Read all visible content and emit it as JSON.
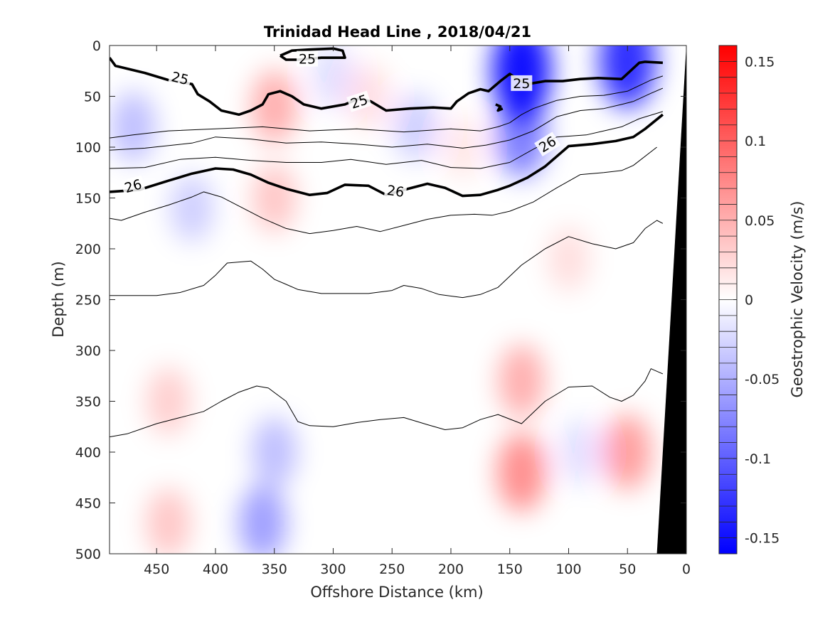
{
  "chart_data": {
    "type": "heatmap",
    "title": "Trinidad Head Line , 2018/04/21",
    "xlabel": "Offshore Distance (km)",
    "ylabel": "Depth (m)",
    "colorbar_label": "Geostrophic Velocity (m/s)",
    "xlim": [
      490,
      0
    ],
    "ylim": [
      500,
      0
    ],
    "x_ticks": [
      "450",
      "400",
      "350",
      "300",
      "250",
      "200",
      "150",
      "100",
      "50",
      "0"
    ],
    "y_ticks": [
      "0",
      "50",
      "100",
      "150",
      "200",
      "250",
      "300",
      "350",
      "400",
      "450",
      "500"
    ],
    "colorbar": {
      "range": [
        -0.16,
        0.16
      ],
      "ticks": [
        "0.15",
        "0.1",
        "0.05",
        "0",
        "-0.05",
        "-0.1",
        "-0.15"
      ],
      "negative_color": "#0000ff",
      "positive_color": "#ff0000",
      "zero_color": "#ffffff",
      "levels": 32
    },
    "velocity_cores": [
      {
        "x": 140,
        "depth": 25,
        "value": -0.15
      },
      {
        "x": 50,
        "depth": 15,
        "value": -0.13
      },
      {
        "x": 140,
        "depth": 90,
        "value": -0.08
      },
      {
        "x": 470,
        "depth": 80,
        "value": -0.04
      },
      {
        "x": 420,
        "depth": 160,
        "value": -0.03
      },
      {
        "x": 350,
        "depth": 400,
        "value": -0.04
      },
      {
        "x": 360,
        "depth": 470,
        "value": -0.06
      },
      {
        "x": 300,
        "depth": 30,
        "value": -0.02
      },
      {
        "x": 230,
        "depth": 80,
        "value": -0.03
      },
      {
        "x": 90,
        "depth": 400,
        "value": -0.02
      },
      {
        "x": 350,
        "depth": 60,
        "value": 0.05
      },
      {
        "x": 350,
        "depth": 150,
        "value": 0.035
      },
      {
        "x": 270,
        "depth": 50,
        "value": 0.02
      },
      {
        "x": 190,
        "depth": 100,
        "value": 0.015
      },
      {
        "x": 140,
        "depth": 420,
        "value": 0.07
      },
      {
        "x": 140,
        "depth": 330,
        "value": 0.05
      },
      {
        "x": 50,
        "depth": 400,
        "value": 0.06
      },
      {
        "x": 440,
        "depth": 350,
        "value": 0.03
      },
      {
        "x": 440,
        "depth": 470,
        "value": 0.035
      },
      {
        "x": 100,
        "depth": 210,
        "value": 0.02
      }
    ],
    "isopycnals": [
      {
        "label": "25",
        "bold": true,
        "points": [
          [
            490,
            12
          ],
          [
            485,
            20
          ],
          [
            460,
            27
          ],
          [
            440,
            34
          ],
          [
            420,
            38
          ],
          [
            415,
            48
          ],
          [
            405,
            55
          ],
          [
            395,
            64
          ],
          [
            380,
            68
          ],
          [
            370,
            64
          ],
          [
            360,
            58
          ],
          [
            355,
            48
          ],
          [
            345,
            45
          ],
          [
            335,
            50
          ],
          [
            325,
            58
          ],
          [
            310,
            62
          ],
          [
            290,
            58
          ],
          [
            278,
            52
          ],
          [
            268,
            55
          ],
          [
            255,
            64
          ],
          [
            235,
            62
          ],
          [
            215,
            61
          ],
          [
            200,
            62
          ],
          [
            195,
            55
          ],
          [
            185,
            47
          ],
          [
            175,
            43
          ],
          [
            168,
            45
          ],
          [
            158,
            35
          ],
          [
            150,
            28
          ],
          [
            145,
            32
          ],
          [
            135,
            38
          ],
          [
            120,
            35
          ],
          [
            105,
            35
          ],
          [
            90,
            33
          ],
          [
            75,
            32
          ],
          [
            55,
            33
          ],
          [
            40,
            17
          ],
          [
            35,
            16
          ],
          [
            20,
            17
          ]
        ]
      },
      {
        "label": "25",
        "bold": true,
        "points": [
          [
            345,
            10
          ],
          [
            335,
            5
          ],
          [
            320,
            4
          ],
          [
            300,
            3
          ],
          [
            292,
            5
          ],
          [
            290,
            12
          ],
          [
            310,
            12
          ],
          [
            330,
            14
          ],
          [
            340,
            14
          ],
          [
            345,
            10
          ]
        ]
      },
      {
        "label": "",
        "bold": true,
        "points": [
          [
            162,
            58
          ],
          [
            158,
            60
          ],
          [
            160,
            64
          ],
          [
            156,
            62
          ]
        ]
      },
      {
        "label": "",
        "bold": false,
        "points": [
          [
            490,
            91
          ],
          [
            470,
            88
          ],
          [
            440,
            84
          ],
          [
            400,
            82
          ],
          [
            360,
            80
          ],
          [
            320,
            84
          ],
          [
            280,
            82
          ],
          [
            240,
            85
          ],
          [
            200,
            82
          ],
          [
            175,
            84
          ],
          [
            160,
            80
          ],
          [
            150,
            76
          ],
          [
            140,
            68
          ],
          [
            130,
            62
          ],
          [
            110,
            54
          ],
          [
            90,
            50
          ],
          [
            70,
            49
          ],
          [
            50,
            45
          ],
          [
            30,
            34
          ],
          [
            20,
            30
          ]
        ]
      },
      {
        "label": "",
        "bold": false,
        "points": [
          [
            490,
            103
          ],
          [
            460,
            101
          ],
          [
            420,
            96
          ],
          [
            400,
            90
          ],
          [
            370,
            92
          ],
          [
            340,
            96
          ],
          [
            310,
            95
          ],
          [
            280,
            97
          ],
          [
            250,
            100
          ],
          [
            220,
            97
          ],
          [
            190,
            101
          ],
          [
            170,
            98
          ],
          [
            150,
            93
          ],
          [
            130,
            84
          ],
          [
            110,
            70
          ],
          [
            90,
            64
          ],
          [
            70,
            62
          ],
          [
            55,
            58
          ],
          [
            45,
            55
          ],
          [
            30,
            47
          ],
          [
            20,
            42
          ]
        ]
      },
      {
        "label": "",
        "bold": false,
        "points": [
          [
            490,
            121
          ],
          [
            460,
            120
          ],
          [
            430,
            112
          ],
          [
            400,
            110
          ],
          [
            370,
            113
          ],
          [
            340,
            115
          ],
          [
            310,
            115
          ],
          [
            285,
            112
          ],
          [
            255,
            117
          ],
          [
            225,
            113
          ],
          [
            200,
            120
          ],
          [
            175,
            121
          ],
          [
            150,
            115
          ],
          [
            130,
            102
          ],
          [
            110,
            90
          ],
          [
            85,
            88
          ],
          [
            70,
            84
          ],
          [
            55,
            80
          ],
          [
            40,
            72
          ],
          [
            20,
            65
          ]
        ]
      },
      {
        "label": "26",
        "bold": true,
        "points": [
          [
            490,
            144
          ],
          [
            465,
            142
          ],
          [
            440,
            133
          ],
          [
            420,
            126
          ],
          [
            400,
            121
          ],
          [
            385,
            122
          ],
          [
            370,
            127
          ],
          [
            355,
            135
          ],
          [
            340,
            141
          ],
          [
            320,
            147
          ],
          [
            305,
            145
          ],
          [
            290,
            137
          ],
          [
            270,
            138
          ],
          [
            255,
            147
          ],
          [
            240,
            142
          ],
          [
            220,
            136
          ],
          [
            205,
            140
          ],
          [
            190,
            148
          ],
          [
            175,
            147
          ],
          [
            160,
            142
          ],
          [
            150,
            138
          ],
          [
            135,
            130
          ],
          [
            120,
            119
          ],
          [
            100,
            99
          ],
          [
            80,
            97
          ],
          [
            60,
            94
          ],
          [
            45,
            90
          ],
          [
            35,
            82
          ],
          [
            20,
            68
          ]
        ]
      },
      {
        "label": "",
        "bold": false,
        "points": [
          [
            490,
            170
          ],
          [
            480,
            172
          ],
          [
            460,
            164
          ],
          [
            440,
            157
          ],
          [
            420,
            149
          ],
          [
            410,
            144
          ],
          [
            395,
            149
          ],
          [
            380,
            158
          ],
          [
            360,
            170
          ],
          [
            340,
            180
          ],
          [
            320,
            185
          ],
          [
            300,
            182
          ],
          [
            280,
            178
          ],
          [
            260,
            183
          ],
          [
            240,
            177
          ],
          [
            220,
            171
          ],
          [
            200,
            167
          ],
          [
            180,
            166
          ],
          [
            165,
            167
          ],
          [
            150,
            163
          ],
          [
            130,
            154
          ],
          [
            110,
            140
          ],
          [
            90,
            127
          ],
          [
            70,
            125
          ],
          [
            55,
            123
          ],
          [
            45,
            118
          ],
          [
            25,
            100
          ]
        ]
      },
      {
        "label": "",
        "bold": false,
        "points": [
          [
            490,
            246
          ],
          [
            450,
            246
          ],
          [
            430,
            243
          ],
          [
            410,
            236
          ],
          [
            400,
            226
          ],
          [
            390,
            214
          ],
          [
            380,
            213
          ],
          [
            370,
            212
          ],
          [
            360,
            220
          ],
          [
            350,
            230
          ],
          [
            340,
            235
          ],
          [
            330,
            240
          ],
          [
            310,
            244
          ],
          [
            290,
            244
          ],
          [
            270,
            244
          ],
          [
            250,
            241
          ],
          [
            240,
            236
          ],
          [
            225,
            239
          ],
          [
            210,
            245
          ],
          [
            190,
            248
          ],
          [
            175,
            245
          ],
          [
            160,
            238
          ],
          [
            140,
            216
          ],
          [
            120,
            200
          ],
          [
            100,
            188
          ],
          [
            80,
            195
          ],
          [
            60,
            200
          ],
          [
            45,
            194
          ],
          [
            35,
            180
          ],
          [
            25,
            172
          ],
          [
            20,
            175
          ]
        ]
      },
      {
        "label": "",
        "bold": false,
        "points": [
          [
            490,
            385
          ],
          [
            475,
            382
          ],
          [
            450,
            372
          ],
          [
            430,
            366
          ],
          [
            410,
            360
          ],
          [
            395,
            350
          ],
          [
            380,
            341
          ],
          [
            365,
            335
          ],
          [
            355,
            337
          ],
          [
            340,
            350
          ],
          [
            330,
            370
          ],
          [
            320,
            374
          ],
          [
            300,
            375
          ],
          [
            280,
            371
          ],
          [
            260,
            368
          ],
          [
            240,
            366
          ],
          [
            220,
            373
          ],
          [
            205,
            378
          ],
          [
            190,
            376
          ],
          [
            175,
            368
          ],
          [
            160,
            363
          ],
          [
            140,
            372
          ],
          [
            120,
            350
          ],
          [
            100,
            336
          ],
          [
            80,
            335
          ],
          [
            65,
            346
          ],
          [
            55,
            350
          ],
          [
            45,
            344
          ],
          [
            35,
            330
          ],
          [
            30,
            318
          ],
          [
            20,
            323
          ]
        ]
      }
    ],
    "contour_labels": [
      {
        "text": "25",
        "x": 430,
        "depth": 32,
        "angle": 14
      },
      {
        "text": "25",
        "x": 322,
        "depth": 13,
        "angle": 0
      },
      {
        "text": "25",
        "x": 278,
        "depth": 55,
        "angle": -18
      },
      {
        "text": "25",
        "x": 140,
        "depth": 37,
        "angle": 0
      },
      {
        "text": "26",
        "x": 470,
        "depth": 138,
        "angle": -16
      },
      {
        "text": "26",
        "x": 247,
        "depth": 143,
        "angle": 8
      },
      {
        "text": "26",
        "x": 118,
        "depth": 97,
        "angle": -32
      }
    ],
    "bathymetry": {
      "color": "#000000",
      "points": [
        [
          0,
          0
        ],
        [
          25,
          500
        ],
        [
          0,
          500
        ]
      ]
    }
  }
}
